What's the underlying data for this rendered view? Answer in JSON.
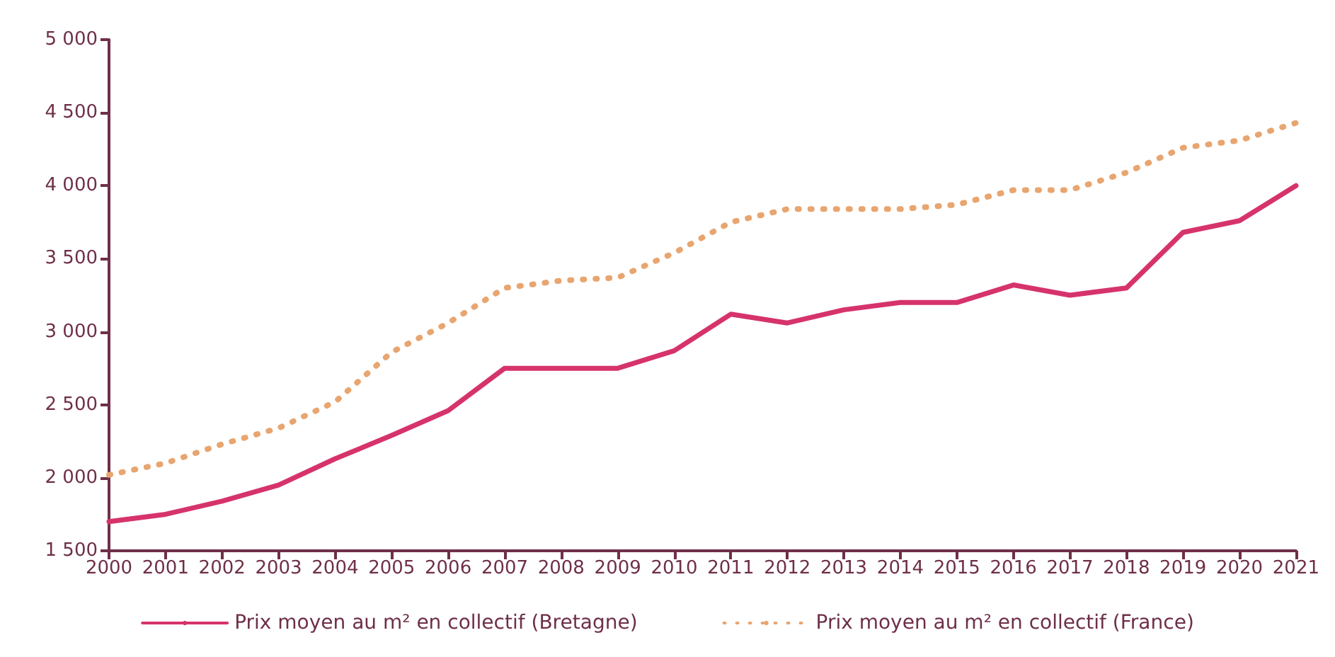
{
  "chart_data": {
    "type": "line",
    "categories": [
      "2000",
      "2001",
      "2002",
      "2003",
      "2004",
      "2005",
      "2006",
      "2007",
      "2008",
      "2009",
      "2010",
      "2011",
      "2012",
      "2013",
      "2014",
      "2015",
      "2016",
      "2017",
      "2018",
      "2019",
      "2020",
      "2021"
    ],
    "series": [
      {
        "name": "Prix moyen au m² en collectif (Bretagne)",
        "color": "#d6336c",
        "line_style": "solid",
        "values": [
          1700,
          1750,
          1840,
          1950,
          2130,
          2290,
          2460,
          2750,
          2750,
          2750,
          2870,
          3120,
          3060,
          3150,
          3200,
          3200,
          3320,
          3250,
          3300,
          3680,
          3760,
          4000
        ]
      },
      {
        "name": "Prix moyen au m² en collectif (France)",
        "color": "#e8a56f",
        "line_style": "dotted",
        "values": [
          2020,
          2100,
          2230,
          2340,
          2520,
          2860,
          3060,
          3300,
          3350,
          3370,
          3540,
          3750,
          3840,
          3840,
          3840,
          3870,
          3970,
          3970,
          4090,
          4260,
          4310,
          4430
        ]
      }
    ],
    "ylim": [
      1500,
      5000
    ],
    "yticks": [
      {
        "value": 1500,
        "label": "1 500"
      },
      {
        "value": 2000,
        "label": "2 000"
      },
      {
        "value": 2500,
        "label": "2 500"
      },
      {
        "value": 3000,
        "label": "3 000"
      },
      {
        "value": 3500,
        "label": "3 500"
      },
      {
        "value": 4000,
        "label": "4 000"
      },
      {
        "value": 4500,
        "label": "4 500"
      },
      {
        "value": 5000,
        "label": "5 000"
      }
    ],
    "grid": false,
    "legend": "bottom",
    "marker": "none"
  }
}
